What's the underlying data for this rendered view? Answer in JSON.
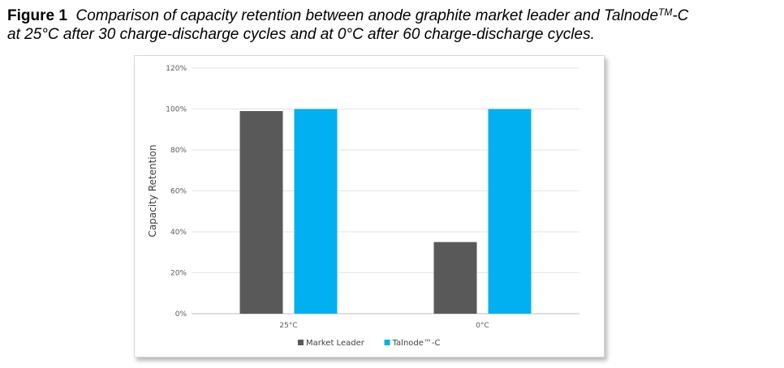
{
  "caption": {
    "figure_label": "Figure 1",
    "line1": "Comparison of capacity retention between anode graphite market leader and Talnode",
    "superscript": "TM",
    "line1_end": "-C",
    "line2": "at 25°C after 30 charge-discharge cycles and at 0°C after 60 charge-discharge cycles."
  },
  "chart_data": {
    "type": "bar",
    "title": "",
    "xlabel": "",
    "ylabel": "Capacity Retention",
    "categories": [
      "25°C",
      "0°C"
    ],
    "series": [
      {
        "name": "Market Leader",
        "values": [
          99,
          35
        ],
        "color": "#595959"
      },
      {
        "name": "Talnode™-C",
        "values": [
          100,
          100
        ],
        "color": "#00b0f0"
      }
    ],
    "ylim": [
      0,
      120
    ],
    "yticks": [
      0,
      20,
      40,
      60,
      80,
      100,
      120
    ],
    "ytick_labels": [
      "0%",
      "20%",
      "40%",
      "60%",
      "80%",
      "100%",
      "120%"
    ],
    "grid": true,
    "legend_position": "bottom-center"
  }
}
